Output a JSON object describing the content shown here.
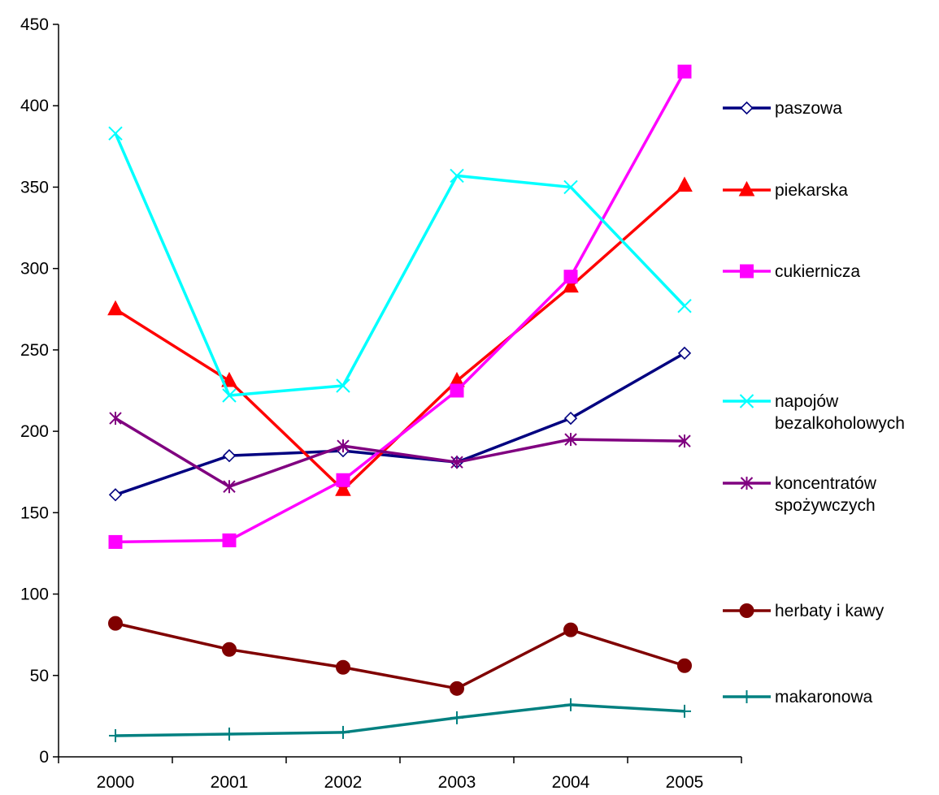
{
  "chart_data": {
    "type": "line",
    "title": "",
    "xlabel": "",
    "ylabel": "",
    "x": [
      "2000",
      "2001",
      "2002",
      "2003",
      "2004",
      "2005"
    ],
    "ylim": [
      0,
      450
    ],
    "yticks": [
      "0",
      "50",
      "100",
      "150",
      "200",
      "250",
      "300",
      "350",
      "400",
      "450"
    ],
    "grid": false,
    "legend_position": "right",
    "series": [
      {
        "name": "paszowa",
        "color": "#000080",
        "marker": "diamond-open",
        "values": [
          161,
          185,
          188,
          181,
          208,
          248
        ]
      },
      {
        "name": "piekarska",
        "color": "#ff0000",
        "marker": "triangle",
        "values": [
          275,
          231,
          164,
          231,
          289,
          351
        ]
      },
      {
        "name": "cukiernicza",
        "color": "#ff00ff",
        "marker": "square",
        "values": [
          132,
          133,
          170,
          225,
          295,
          421
        ]
      },
      {
        "name": "napojów bezalkoholowych",
        "color": "#00ffff",
        "marker": "x",
        "values": [
          383,
          222,
          228,
          357,
          350,
          277
        ]
      },
      {
        "name": "koncentratów spożywczych",
        "color": "#800080",
        "marker": "star",
        "values": [
          208,
          166,
          191,
          181,
          195,
          194
        ]
      },
      {
        "name": "herbaty i kawy",
        "color": "#800000",
        "marker": "circle",
        "values": [
          82,
          66,
          55,
          42,
          78,
          56
        ]
      },
      {
        "name": "makaronowa",
        "color": "#008080",
        "marker": "plus",
        "values": [
          13,
          14,
          15,
          24,
          32,
          28
        ]
      }
    ]
  }
}
